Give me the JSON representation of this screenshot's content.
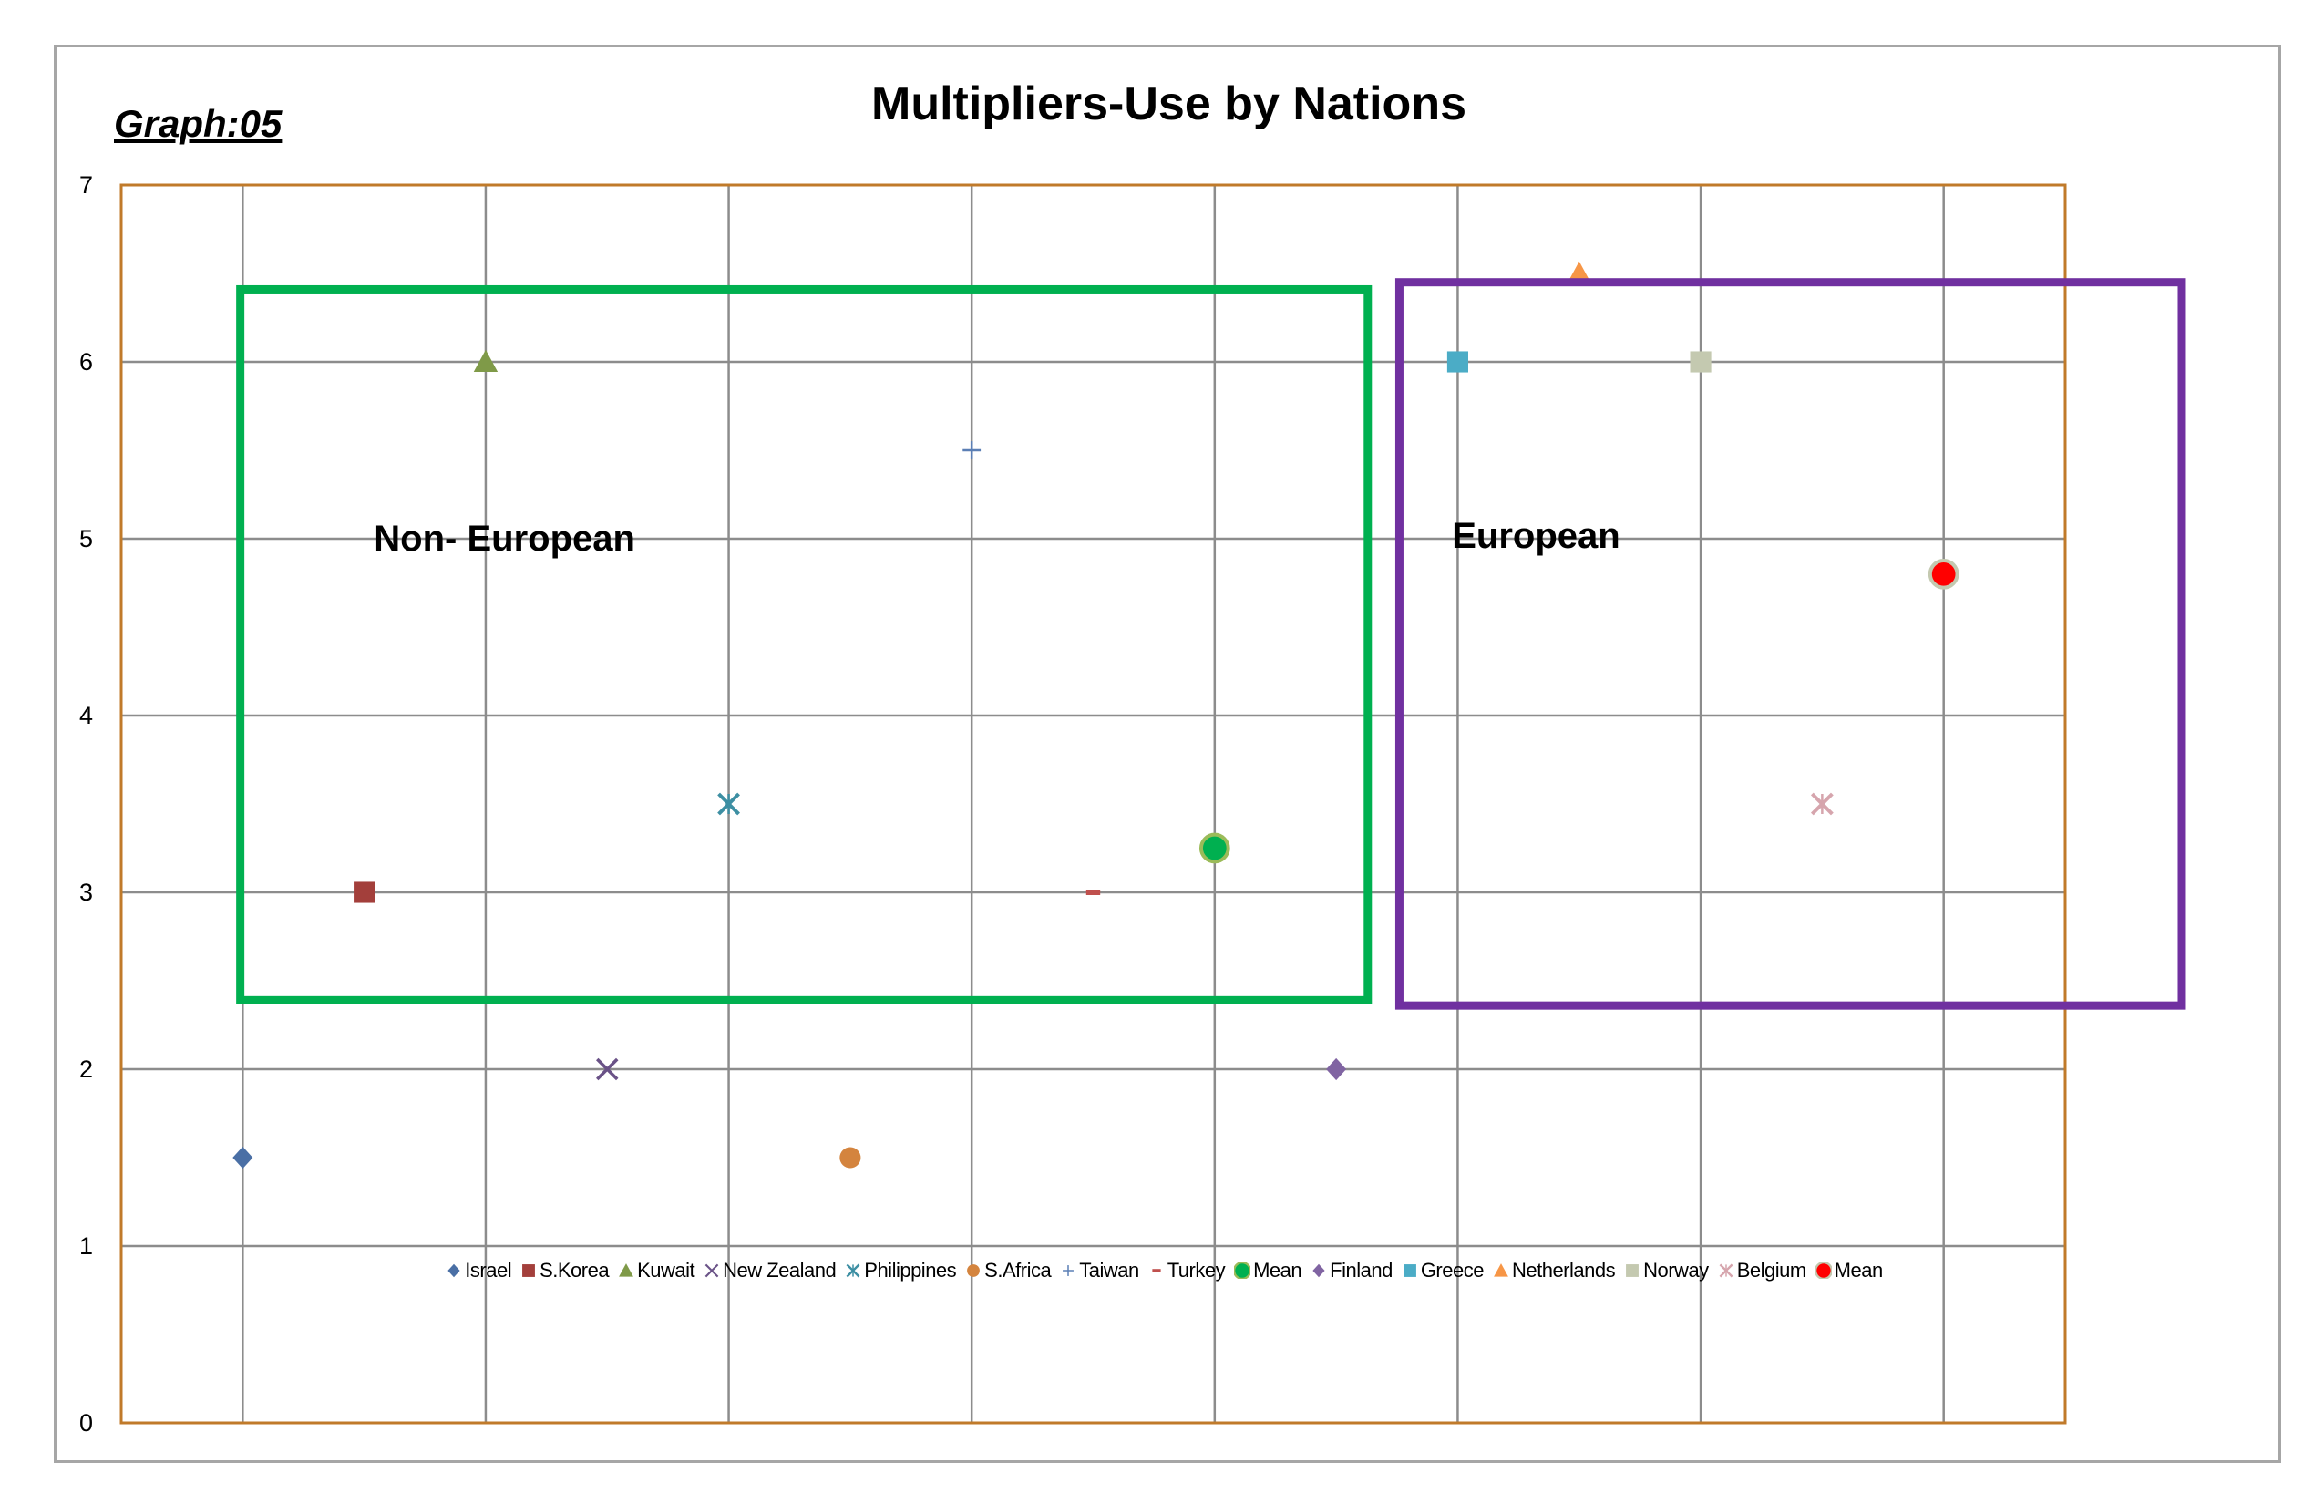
{
  "graph_label": "Graph:05",
  "chart_data": {
    "type": "scatter",
    "title": "Multipliers-Use by Nations",
    "xlabel": "",
    "ylabel": "",
    "xlim": [
      0.5,
      8.5
    ],
    "ylim": [
      0,
      7
    ],
    "y_ticks": [
      "0",
      "1",
      "2",
      "3",
      "4",
      "5",
      "6",
      "7"
    ],
    "x_gridlines": [
      1,
      2,
      3,
      4,
      5,
      6,
      7,
      8
    ],
    "grid": true,
    "legend_position": "bottom-inside",
    "plot_border_color": "#c07a2a",
    "series": [
      {
        "name": "Israel",
        "x": 1.0,
        "y": 1.5,
        "marker": "diamond",
        "color": "#4a6fa5"
      },
      {
        "name": "S.Korea",
        "x": 1.5,
        "y": 3.0,
        "marker": "square",
        "color": "#a33f3b"
      },
      {
        "name": "Kuwait",
        "x": 2.0,
        "y": 6.0,
        "marker": "triangle",
        "color": "#7f9a48"
      },
      {
        "name": "New Zealand",
        "x": 2.5,
        "y": 2.0,
        "marker": "x",
        "color": "#6a5287"
      },
      {
        "name": "Philippines",
        "x": 3.0,
        "y": 3.5,
        "marker": "star",
        "color": "#3d8fa3"
      },
      {
        "name": "S.Africa",
        "x": 3.5,
        "y": 1.5,
        "marker": "circle",
        "color": "#d4843e"
      },
      {
        "name": "Taiwan",
        "x": 4.0,
        "y": 5.5,
        "marker": "plus",
        "color": "#5b7fb5"
      },
      {
        "name": "Turkey",
        "x": 4.5,
        "y": 3.0,
        "marker": "dash",
        "color": "#c0504d"
      },
      {
        "name": "Mean",
        "x": 5.0,
        "y": 3.25,
        "marker": "big-circle",
        "color": "#00b050",
        "stroke": "#9bbb59"
      },
      {
        "name": "Finland",
        "x": 5.5,
        "y": 2.0,
        "marker": "diamond",
        "color": "#8064a2"
      },
      {
        "name": "Greece",
        "x": 6.0,
        "y": 6.0,
        "marker": "square",
        "color": "#4bacc6"
      },
      {
        "name": "Netherlands",
        "x": 6.5,
        "y": 6.5,
        "marker": "triangle",
        "color": "#f79646"
      },
      {
        "name": "Norway",
        "x": 7.0,
        "y": 6.0,
        "marker": "square",
        "color": "#c4c9b0"
      },
      {
        "name": "Belgium",
        "x": 7.5,
        "y": 3.5,
        "marker": "star",
        "color": "#d6a5ad"
      },
      {
        "name": "Mean",
        "x": 8.0,
        "y": 4.8,
        "marker": "big-circle",
        "color": "#ff0000",
        "stroke": "#c4c9b0"
      }
    ],
    "annotation_boxes": [
      {
        "label": "Non- European",
        "x_range": [
          0.99,
          5.63
        ],
        "y_range": [
          2.39,
          6.41
        ],
        "color": "#00b050"
      },
      {
        "label": "European",
        "x_range": [
          5.76,
          8.98
        ],
        "y_range": [
          2.36,
          6.45
        ],
        "color": "#7030a0"
      }
    ]
  }
}
